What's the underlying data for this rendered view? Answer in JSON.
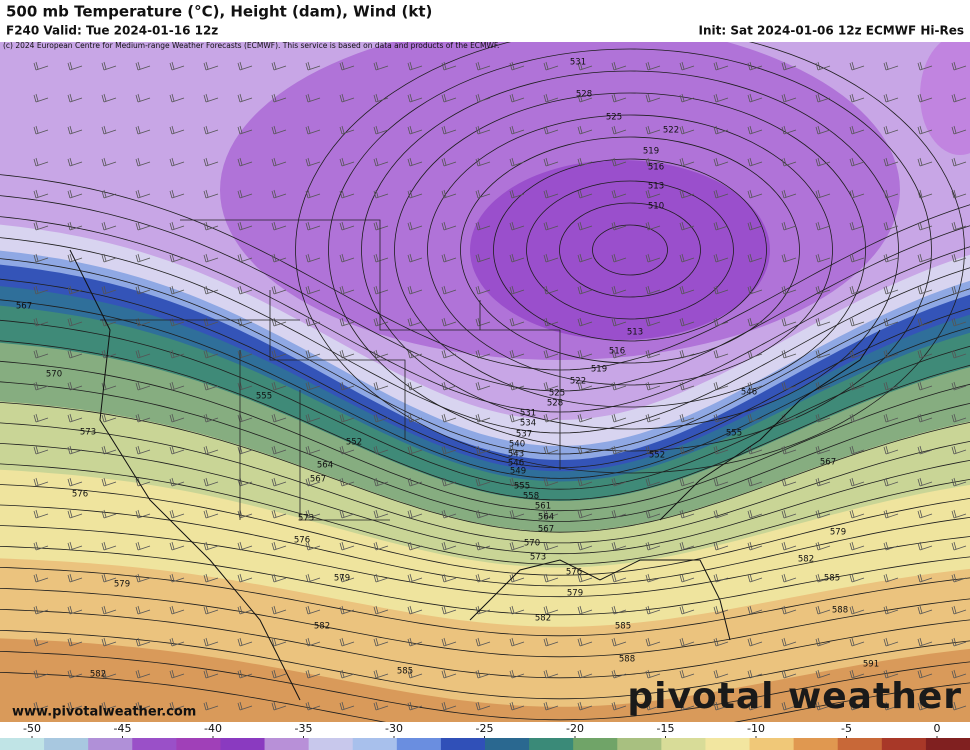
{
  "header": {
    "title": "500 mb Temperature (°C), Height (dam), Wind (kt)",
    "valid": "F240 Valid: Tue 2024-01-16 12z",
    "init": "Init: Sat 2024-01-06 12z ECMWF Hi-Res",
    "copyright": "(c) 2024 European Centre for Medium-range Weather Forecasts (ECMWF). This service is based on data and products of the ECMWF."
  },
  "contour_labels": [
    531,
    528,
    525,
    522,
    519,
    516,
    513,
    510,
    513,
    516,
    519,
    522,
    525,
    528,
    531,
    534,
    537,
    540,
    543,
    546,
    549,
    555,
    558,
    561,
    564,
    567,
    570,
    573,
    576,
    579,
    582,
    585,
    588,
    591,
    546,
    555,
    552,
    567,
    579,
    582,
    585,
    588,
    567,
    570,
    573,
    576,
    579,
    582,
    555,
    552,
    564,
    567,
    573,
    576,
    579,
    582,
    585
  ],
  "website": "www.pivotalweather.com",
  "watermark": "pivotal weather",
  "colorbar": {
    "ticks": [
      -50,
      -45,
      -40,
      -35,
      -30,
      -25,
      -20,
      -15,
      -10,
      -5,
      0
    ]
  }
}
